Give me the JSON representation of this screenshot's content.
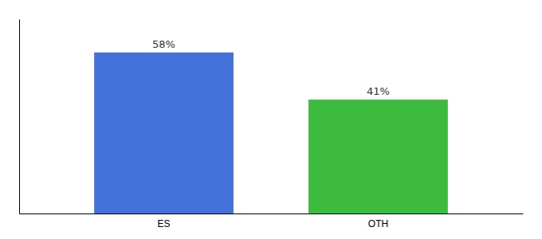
{
  "chart_data": {
    "type": "bar",
    "categories": [
      "ES",
      "OTH"
    ],
    "values": [
      58,
      41
    ],
    "value_labels": [
      "58%",
      "41%"
    ],
    "colors": [
      "#4472db",
      "#3dbb3d"
    ],
    "ylim": [
      0,
      70
    ],
    "data_labels": true,
    "tick_labels": "x",
    "grid": false
  }
}
